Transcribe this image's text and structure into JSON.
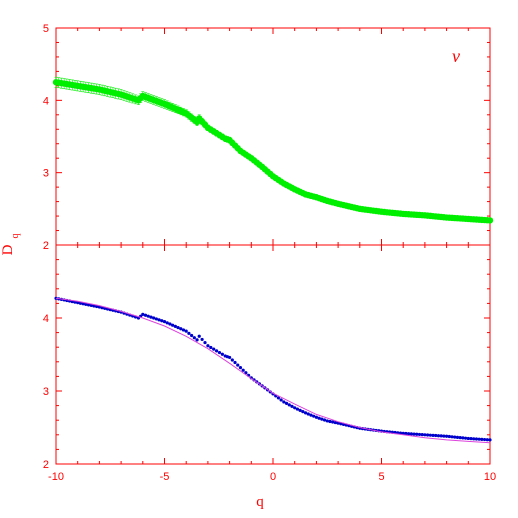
{
  "chart_data": {
    "type": "scatter",
    "xlabel": "q",
    "ylabel": "D",
    "ylabel_subscript": "q",
    "xlim": [
      -10,
      10
    ],
    "xticks": [
      -10,
      -5,
      0,
      5,
      10
    ],
    "axis_color": "#ff0000",
    "grid": false,
    "panels": [
      {
        "id": "top",
        "ylim": [
          2,
          5
        ],
        "yticks": [
          2,
          3,
          4,
          5
        ],
        "annotation": "ν",
        "series": [
          {
            "marker_color": "#00ee00",
            "error_bars": true,
            "x": [
              -10,
              -9,
              -8,
              -7,
              -6.2,
              -6,
              -5,
              -4,
              -3.5,
              -3.4,
              -3,
              -2.2,
              -2,
              -1.5,
              -1,
              -0.5,
              0,
              0.5,
              1,
              1.5,
              2,
              2.5,
              3,
              4,
              5,
              6,
              7,
              8,
              9,
              10
            ],
            "y": [
              4.25,
              4.2,
              4.15,
              4.08,
              4.0,
              4.06,
              3.95,
              3.82,
              3.7,
              3.75,
              3.62,
              3.47,
              3.45,
              3.3,
              3.2,
              3.08,
              2.95,
              2.85,
              2.77,
              2.7,
              2.66,
              2.61,
              2.57,
              2.5,
              2.46,
              2.43,
              2.41,
              2.38,
              2.36,
              2.34
            ],
            "err": [
              0.07,
              0.07,
              0.07,
              0.07,
              0.06,
              0.06,
              0.06,
              0.05,
              0.05,
              0.05,
              0.04,
              0.04,
              0.04,
              0.03,
              0.03,
              0.02,
              0.02,
              0.01,
              0.01,
              0.01,
              0.01,
              0.01,
              0.01,
              0.01,
              0.01,
              0.01,
              0.01,
              0.01,
              0.01,
              0.01
            ]
          }
        ]
      },
      {
        "id": "bottom",
        "ylim": [
          2,
          5
        ],
        "yticks": [
          2,
          3,
          4
        ],
        "series": [
          {
            "marker_color": "#0000cc",
            "x": [
              -10,
              -9,
              -8,
              -7,
              -6.2,
              -6,
              -5,
              -4,
              -3.5,
              -3.4,
              -3,
              -2.2,
              -2,
              -1.5,
              -1,
              -0.5,
              0,
              0.5,
              1,
              1.5,
              2,
              2.5,
              3,
              4,
              5,
              6,
              7,
              8,
              9,
              10
            ],
            "y": [
              4.27,
              4.21,
              4.15,
              4.08,
              4.0,
              4.05,
              3.95,
              3.82,
              3.7,
              3.75,
              3.62,
              3.48,
              3.46,
              3.32,
              3.18,
              3.07,
              2.96,
              2.85,
              2.77,
              2.7,
              2.64,
              2.59,
              2.56,
              2.49,
              2.45,
              2.42,
              2.4,
              2.38,
              2.35,
              2.33
            ]
          },
          {
            "line_color": "#dd44dd",
            "type": "line",
            "x": [
              -10,
              -9,
              -8,
              -7,
              -6,
              -5,
              -4,
              -3,
              -2,
              -1,
              0,
              1,
              2,
              3,
              4,
              5,
              6,
              7,
              8,
              9,
              10
            ],
            "y": [
              4.27,
              4.23,
              4.17,
              4.09,
              4.0,
              3.89,
              3.75,
              3.58,
              3.38,
              3.17,
              2.97,
              2.82,
              2.68,
              2.58,
              2.5,
              2.44,
              2.4,
              2.36,
              2.33,
              2.31,
              2.29
            ]
          }
        ]
      }
    ]
  }
}
